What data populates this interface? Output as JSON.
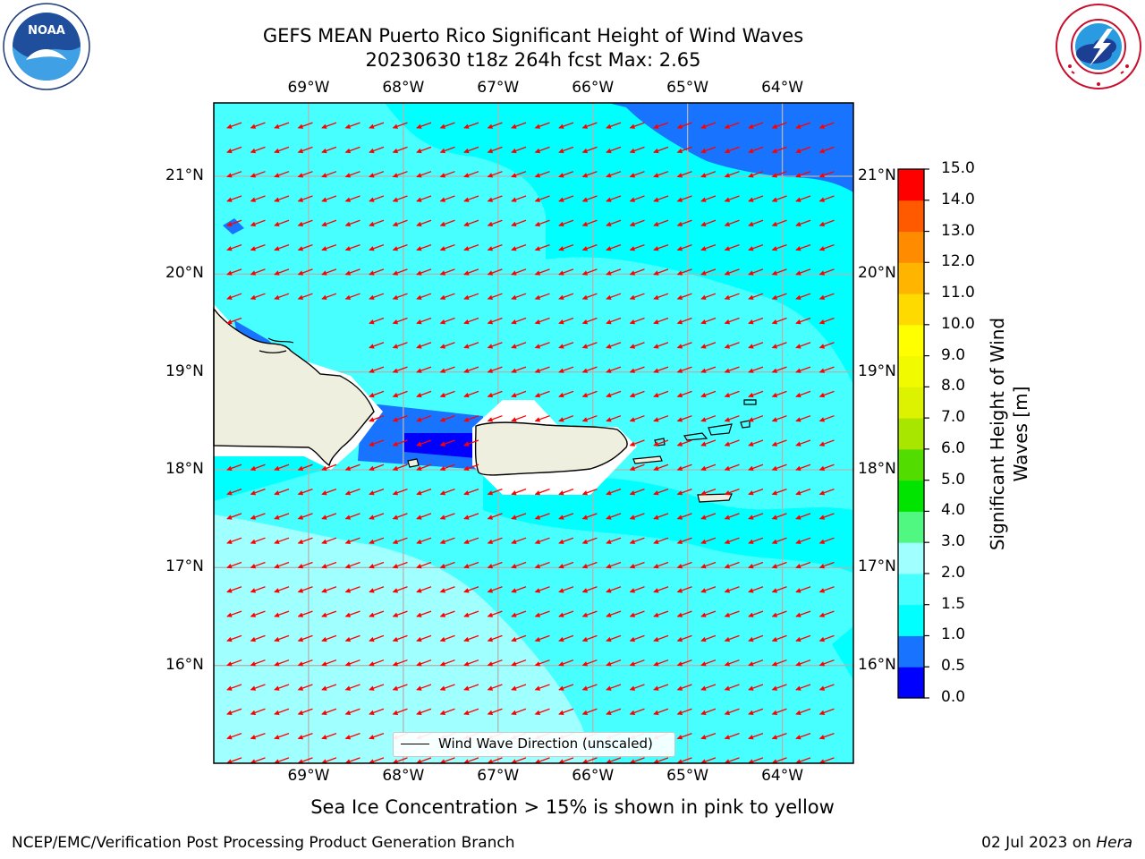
{
  "title": {
    "line1": "GEFS MEAN Puerto Rico Significant Height of Wind Waves",
    "line2": "20230630 t18z 264h fcst   Max: 2.65"
  },
  "map": {
    "lon_ticks": [
      "69°W",
      "68°W",
      "67°W",
      "66°W",
      "65°W",
      "64°W"
    ],
    "lat_ticks": [
      "21°N",
      "20°N",
      "19°N",
      "18°N",
      "17°N",
      "16°N"
    ],
    "lon_values": [
      -69,
      -68,
      -67,
      -66,
      -65,
      -64
    ],
    "lat_values": [
      21,
      20,
      19,
      18,
      17,
      16
    ],
    "extent": {
      "lon_min": -70.0,
      "lon_max": -63.25,
      "lat_min": 15.0,
      "lat_max": 21.75
    },
    "legend_label": "Wind Wave Direction (unscaled)",
    "arrow_color": "#ff0000",
    "land_color": "#efefdf",
    "wave_direction": "toward west-southwest (easterly trade winds)"
  },
  "colorbar": {
    "label_line1": "Significant Height of Wind",
    "label_line2": "Waves [m]",
    "ticks": [
      "15.0",
      "14.0",
      "13.0",
      "12.0",
      "11.0",
      "10.0",
      "9.0",
      "8.0",
      "7.0",
      "6.0",
      "5.0",
      "4.0",
      "3.0",
      "2.0",
      "1.5",
      "1.0",
      "0.5",
      "0.0"
    ],
    "levels": [
      0.0,
      0.5,
      1.0,
      1.5,
      2.0,
      3.0,
      4.0,
      5.0,
      6.0,
      7.0,
      8.0,
      9.0,
      10.0,
      11.0,
      12.0,
      13.0,
      14.0,
      15.0
    ],
    "colors": [
      "#0000ff",
      "#1874ff",
      "#00ffff",
      "#48ffff",
      "#a0ffff",
      "#50f780",
      "#00e400",
      "#52dc00",
      "#a8e600",
      "#dcf200",
      "#f2fa00",
      "#ffff00",
      "#ffda00",
      "#ffb400",
      "#ff8c00",
      "#ff5a00",
      "#ff0000"
    ]
  },
  "sea_ice_note": "Sea Ice Concentration > 15% is shown in pink to yellow",
  "footer": {
    "left": "NCEP/EMC/Verification Post Processing Product Generation Branch",
    "right_prefix": "02 Jul 2023 on ",
    "right_host": "Hera"
  }
}
